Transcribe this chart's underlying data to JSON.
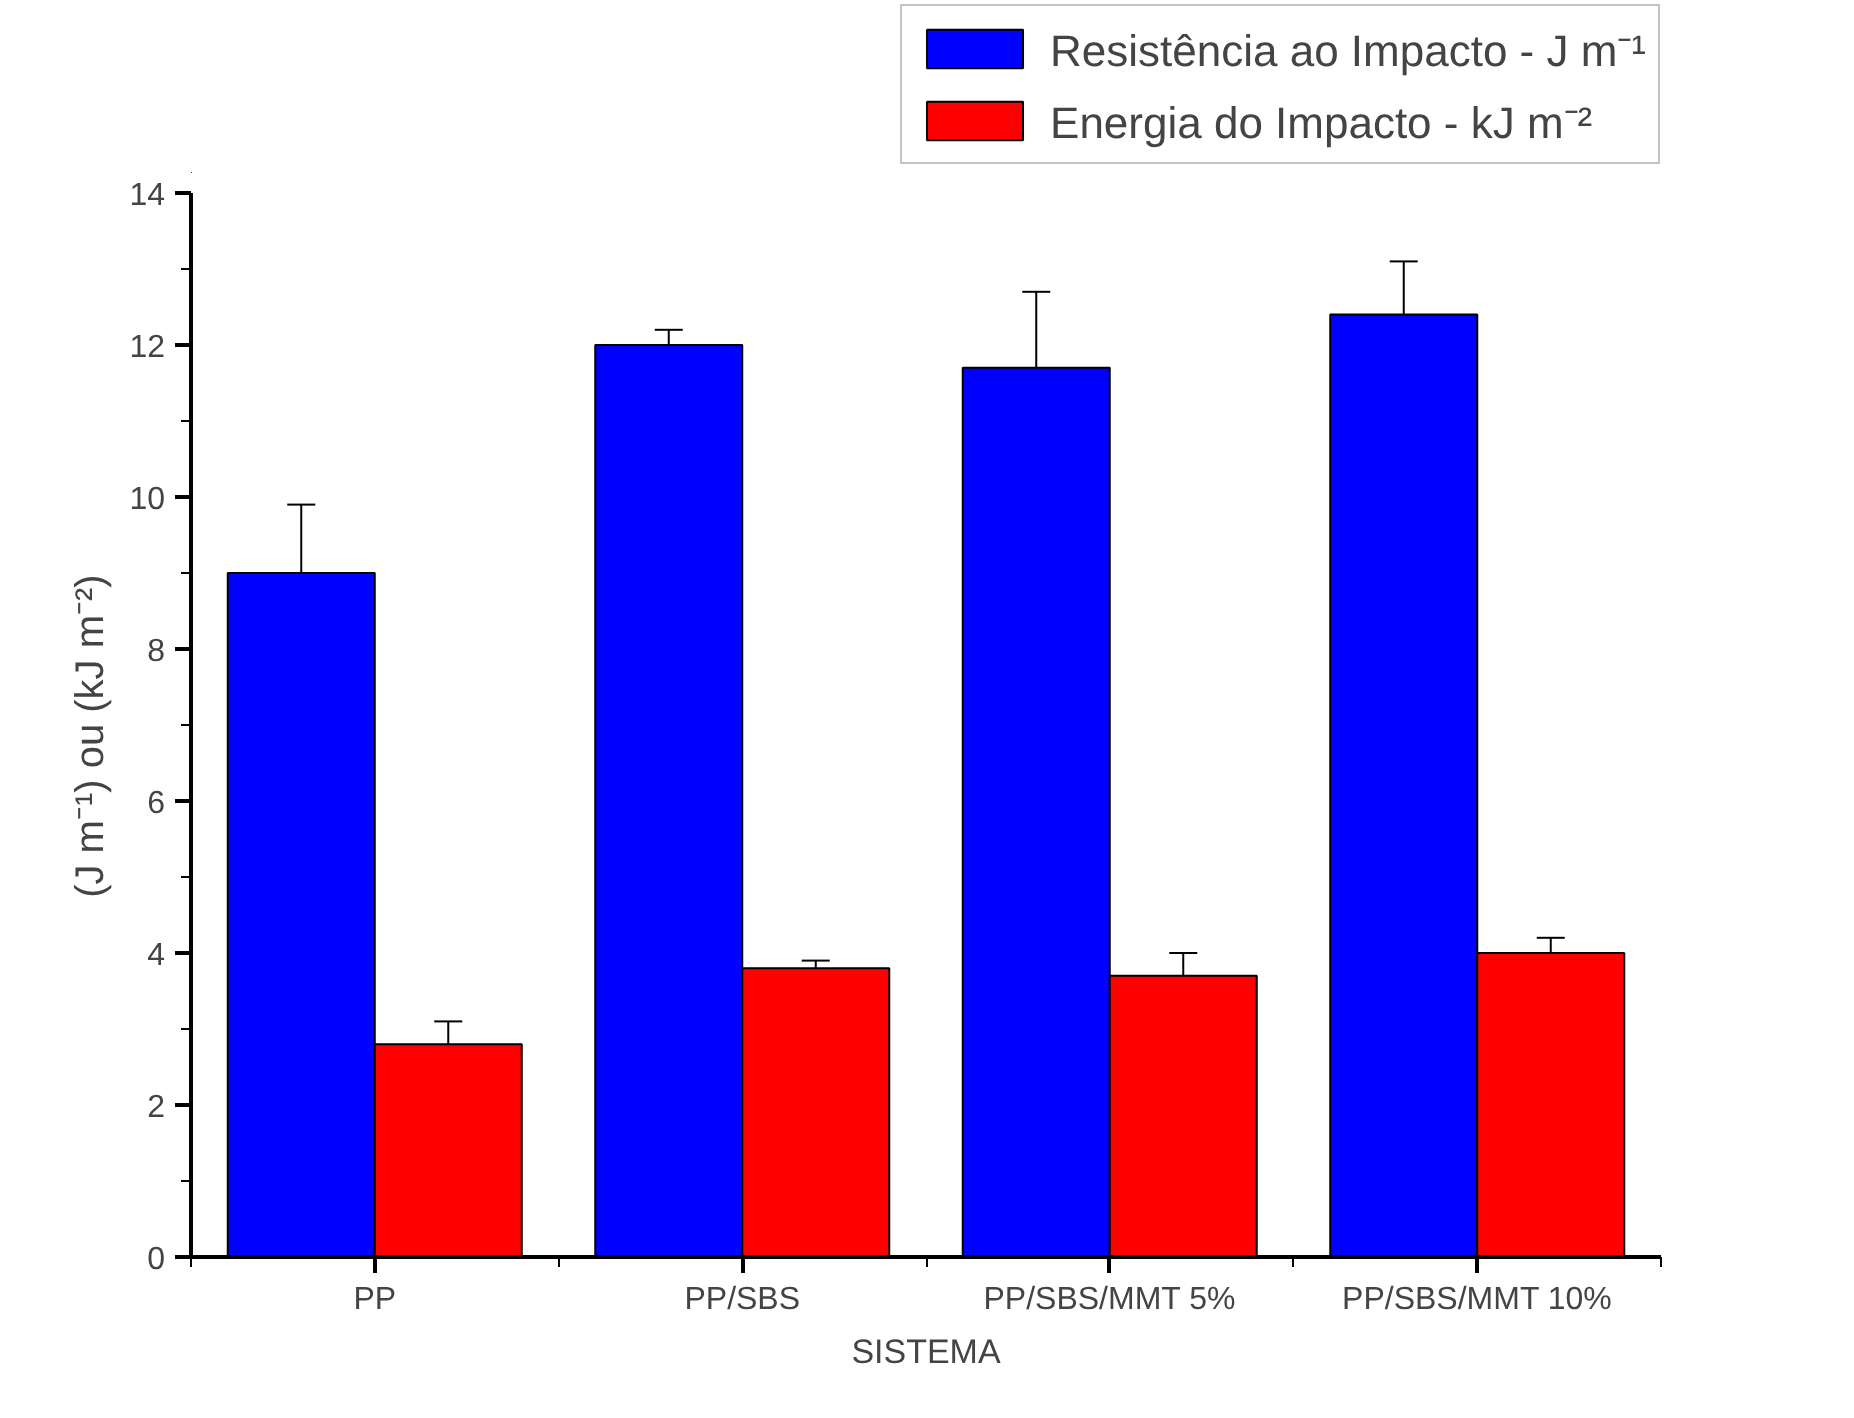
{
  "chart_data": {
    "type": "bar",
    "xlabel": "SISTEMA",
    "ylabel": "(J m⁻¹)  ou  (kJ m⁻²)",
    "categories": [
      "PP",
      "PP/SBS",
      "PP/SBS/MMT 5%",
      "PP/SBS/MMT 10%"
    ],
    "series": [
      {
        "name": "Resistência ao Impacto - J m⁻¹",
        "color": "#0000ff",
        "values": [
          9.0,
          12.0,
          11.7,
          12.4
        ],
        "errors": [
          0.9,
          0.2,
          1.0,
          0.7
        ]
      },
      {
        "name": "Energia do Impacto - kJ m⁻²",
        "color": "#ff0000",
        "values": [
          2.8,
          3.8,
          3.7,
          4.0
        ],
        "errors": [
          0.3,
          0.1,
          0.3,
          0.2
        ]
      }
    ],
    "ylim": [
      0,
      14
    ],
    "yticks": [
      0,
      2,
      4,
      6,
      8,
      10,
      12,
      14
    ],
    "grid": false,
    "legend": "top right"
  }
}
